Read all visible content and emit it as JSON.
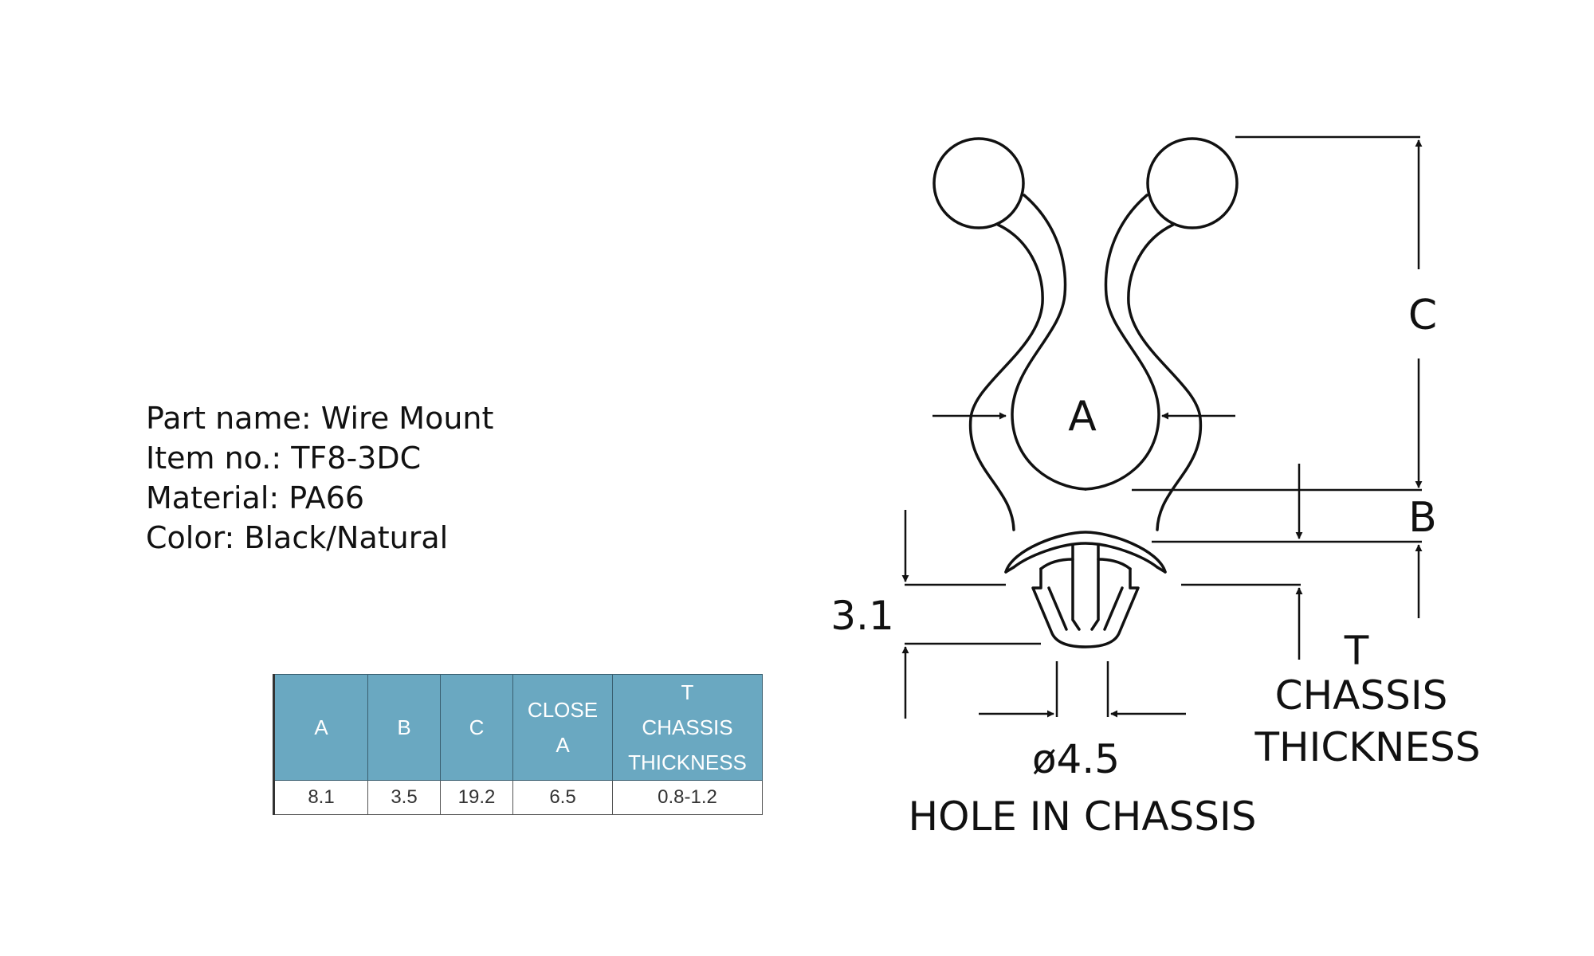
{
  "part_info": {
    "part_name": "Part name: Wire Mount",
    "item_no": "Item no.: TF8-3DC",
    "material": "Material: PA66",
    "color": "Color: Black/Natural"
  },
  "spec_table": {
    "headers": {
      "a": "A",
      "b": "B",
      "c": "C",
      "close_a_line1": "CLOSE",
      "close_a_line2": "A",
      "t_line1": "T",
      "t_line2": "CHASSIS",
      "t_line3": "THICKNESS"
    },
    "row": {
      "a": "8.1",
      "b": "3.5",
      "c": "19.2",
      "close_a": "6.5",
      "t": "0.8-1.2"
    }
  },
  "drawing": {
    "label_a": "A",
    "label_b": "B",
    "label_c": "C",
    "label_t": "T",
    "label_chassis": "CHASSIS",
    "label_thickness": "THICKNESS",
    "dim_height": "3.1",
    "dim_hole": "ø4.5",
    "label_hole": "HOLE IN CHASSIS"
  }
}
